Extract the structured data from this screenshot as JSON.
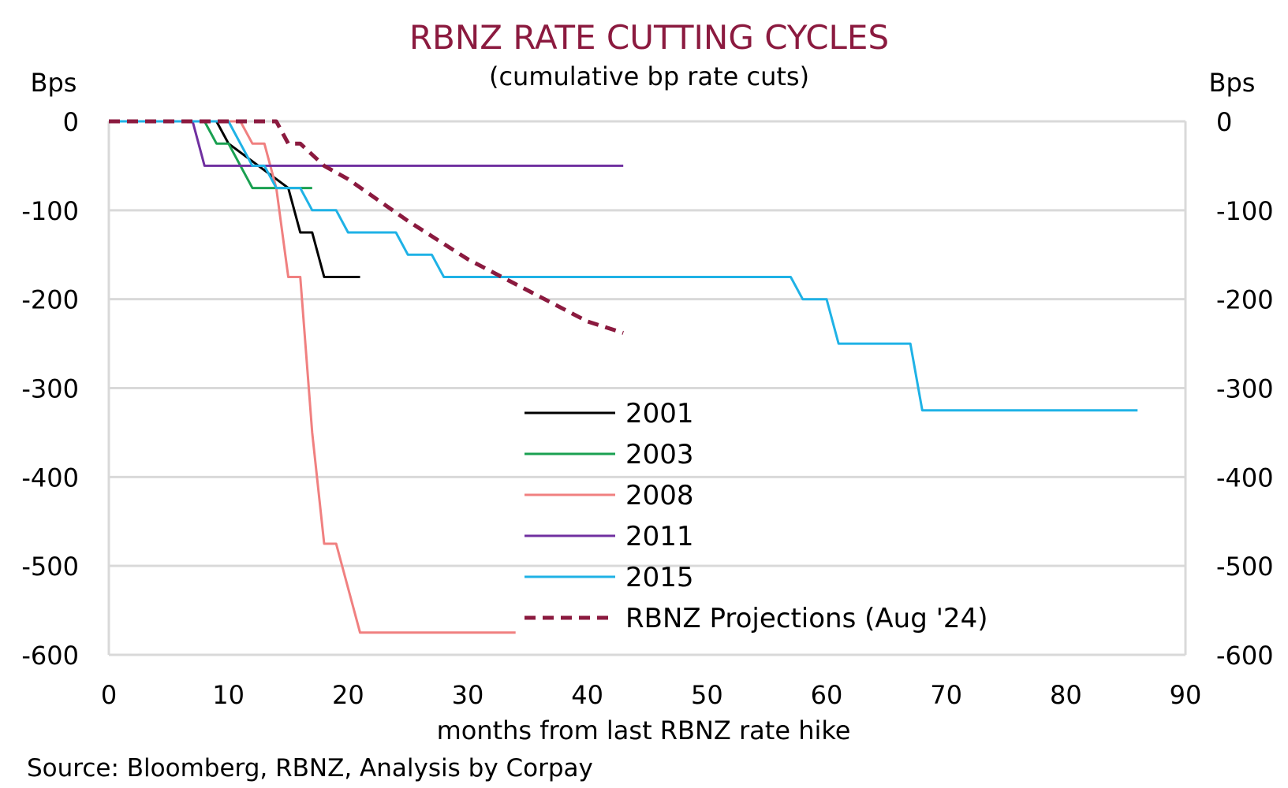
{
  "chart_data": {
    "type": "line",
    "title": "RBNZ RATE CUTTING CYCLES",
    "subtitle": "(cumulative bp rate cuts)",
    "ylabel_left": "Bps",
    "ylabel_right": "Bps",
    "xlabel": "months from last RBNZ rate hike",
    "source": "Source: Bloomberg, RBNZ, Analysis by Corpay",
    "xlim": [
      0,
      90
    ],
    "ylim": [
      -600,
      0
    ],
    "x_ticks": [
      0,
      10,
      20,
      30,
      40,
      50,
      60,
      70,
      80,
      90
    ],
    "y_ticks": [
      0,
      -100,
      -200,
      -300,
      -400,
      -500,
      -600
    ],
    "grid": true,
    "legend_position": "center",
    "colors": {
      "title": "#8b1a3f",
      "grid": "#d9d9d9",
      "axis_text": "#000000"
    },
    "series": [
      {
        "name": "2001",
        "color": "#000000",
        "dashed": false,
        "points": [
          [
            0,
            0
          ],
          [
            9,
            0
          ],
          [
            10,
            -25
          ],
          [
            15,
            -75
          ],
          [
            16,
            -125
          ],
          [
            17,
            -125
          ],
          [
            18,
            -175
          ],
          [
            21,
            -175
          ]
        ]
      },
      {
        "name": "2003",
        "color": "#1aa051",
        "dashed": false,
        "points": [
          [
            0,
            0
          ],
          [
            8,
            0
          ],
          [
            9,
            -25
          ],
          [
            10,
            -25
          ],
          [
            12,
            -75
          ],
          [
            17,
            -75
          ]
        ]
      },
      {
        "name": "2008",
        "color": "#f08080",
        "dashed": false,
        "points": [
          [
            0,
            0
          ],
          [
            11,
            0
          ],
          [
            12,
            -25
          ],
          [
            13,
            -25
          ],
          [
            14,
            -75
          ],
          [
            15,
            -175
          ],
          [
            16,
            -175
          ],
          [
            17,
            -350
          ],
          [
            18,
            -475
          ],
          [
            19,
            -475
          ],
          [
            21,
            -575
          ],
          [
            34,
            -575
          ]
        ]
      },
      {
        "name": "2011",
        "color": "#7030a0",
        "dashed": false,
        "points": [
          [
            0,
            0
          ],
          [
            7,
            0
          ],
          [
            8,
            -50
          ],
          [
            43,
            -50
          ]
        ]
      },
      {
        "name": "2015",
        "color": "#1fb2e6",
        "dashed": false,
        "points": [
          [
            0,
            0
          ],
          [
            10,
            0
          ],
          [
            11,
            -25
          ],
          [
            12,
            -50
          ],
          [
            13,
            -50
          ],
          [
            14,
            -75
          ],
          [
            16,
            -75
          ],
          [
            17,
            -100
          ],
          [
            19,
            -100
          ],
          [
            20,
            -125
          ],
          [
            24,
            -125
          ],
          [
            25,
            -150
          ],
          [
            27,
            -150
          ],
          [
            28,
            -175
          ],
          [
            57,
            -175
          ],
          [
            58,
            -200
          ],
          [
            60,
            -200
          ],
          [
            61,
            -250
          ],
          [
            67,
            -250
          ],
          [
            68,
            -325
          ],
          [
            86,
            -325
          ]
        ]
      },
      {
        "name": "RBNZ Projections (Aug '24)",
        "color": "#8b1a3f",
        "dashed": true,
        "points": [
          [
            0,
            0
          ],
          [
            14,
            0
          ],
          [
            15,
            -25
          ],
          [
            16,
            -25
          ],
          [
            18,
            -50
          ],
          [
            20,
            -65
          ],
          [
            25,
            -112
          ],
          [
            30,
            -155
          ],
          [
            35,
            -190
          ],
          [
            40,
            -225
          ],
          [
            43,
            -238
          ]
        ]
      }
    ]
  }
}
